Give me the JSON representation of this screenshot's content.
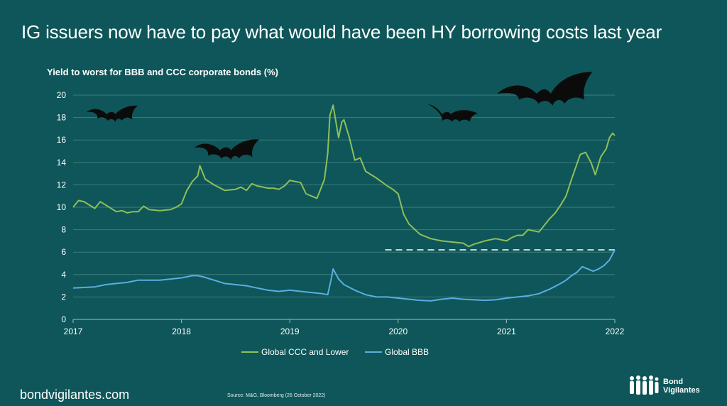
{
  "header": {
    "title": "IG issuers now have to pay what would have been HY borrowing costs last year",
    "subtitle": "Yield to worst for BBB and CCC corporate bonds (%)"
  },
  "footer": {
    "site": "bondvigilantes.com",
    "source": "Source: M&G, Bloomberg (26 October 2022)",
    "brand_line1": "Bond",
    "brand_line2": "Vigilantes"
  },
  "colors": {
    "background": "#0e5659",
    "ccc": "#8fbf5a",
    "bbb": "#5aaee0",
    "grid": "#3f7c7e",
    "dashed": "#ffffff"
  },
  "icons": [
    "bat-icon",
    "bondvigilantes-logo-icon"
  ],
  "chart_data": {
    "type": "line",
    "title": "Yield to worst for BBB and CCC corporate bonds (%)",
    "xlabel": "",
    "ylabel": "",
    "xlim": [
      2017.0,
      2022.0
    ],
    "ylim": [
      0,
      20
    ],
    "yticks": [
      0,
      2,
      4,
      6,
      8,
      10,
      12,
      14,
      16,
      18,
      20
    ],
    "xticks": [
      "2017",
      "2018",
      "2019",
      "2020",
      "2021",
      "2022"
    ],
    "grid": true,
    "legend_position": "bottom-center",
    "reference_line": {
      "y": 6.2,
      "x_start": 2019.88,
      "x_end": 2022.0,
      "style": "dashed"
    },
    "series": [
      {
        "name": "Global CCC and Lower",
        "color": "#8fbf5a",
        "x": [
          2017.0,
          2017.05,
          2017.1,
          2017.2,
          2017.25,
          2017.3,
          2017.4,
          2017.45,
          2017.5,
          2017.55,
          2017.6,
          2017.65,
          2017.7,
          2017.8,
          2017.9,
          2017.95,
          2018.0,
          2018.05,
          2018.1,
          2018.15,
          2018.17,
          2018.22,
          2018.3,
          2018.4,
          2018.5,
          2018.55,
          2018.6,
          2018.65,
          2018.7,
          2018.8,
          2018.85,
          2018.9,
          2018.95,
          2019.0,
          2019.05,
          2019.1,
          2019.15,
          2019.2,
          2019.25,
          2019.28,
          2019.32,
          2019.35,
          2019.37,
          2019.4,
          2019.45,
          2019.48,
          2019.5,
          2019.55,
          2019.6,
          2019.65,
          2019.7,
          2019.8,
          2019.9,
          2019.95,
          2020.0,
          2020.05,
          2020.1,
          2020.2,
          2020.3,
          2020.4,
          2020.5,
          2020.6,
          2020.65,
          2020.7,
          2020.8,
          2020.9,
          2021.0,
          2021.05,
          2021.1,
          2021.15,
          2021.2,
          2021.3,
          2021.4,
          2021.45,
          2021.5,
          2021.55,
          2021.6,
          2021.63,
          2021.68,
          2021.73,
          2021.78,
          2021.82,
          2021.87,
          2021.92,
          2021.95,
          2021.98,
          2022.0
        ],
        "values": [
          10.0,
          10.6,
          10.5,
          9.9,
          10.5,
          10.2,
          9.6,
          9.7,
          9.5,
          9.6,
          9.6,
          10.1,
          9.8,
          9.7,
          9.8,
          10.0,
          10.3,
          11.5,
          12.3,
          12.8,
          13.7,
          12.5,
          12.0,
          11.5,
          11.6,
          11.8,
          11.5,
          12.1,
          11.9,
          11.7,
          11.7,
          11.6,
          11.9,
          12.4,
          12.3,
          12.2,
          11.2,
          11.0,
          10.8,
          11.5,
          12.5,
          14.8,
          18.2,
          19.1,
          16.2,
          17.6,
          17.8,
          16.2,
          14.2,
          14.4,
          13.2,
          12.6,
          11.9,
          11.6,
          11.2,
          9.4,
          8.5,
          7.6,
          7.2,
          7.0,
          6.9,
          6.8,
          6.5,
          6.7,
          7.0,
          7.2,
          7.0,
          7.3,
          7.5,
          7.5,
          8.0,
          7.8,
          9.0,
          9.5,
          10.2,
          11.0,
          12.5,
          13.3,
          14.7,
          14.9,
          14.0,
          12.9,
          14.5,
          15.2,
          16.2,
          16.6,
          16.4
        ]
      },
      {
        "name": "Global BBB",
        "color": "#5aaee0",
        "x": [
          2017.0,
          2017.1,
          2017.2,
          2017.3,
          2017.4,
          2017.5,
          2017.6,
          2017.7,
          2017.8,
          2017.9,
          2018.0,
          2018.05,
          2018.1,
          2018.15,
          2018.2,
          2018.3,
          2018.4,
          2018.5,
          2018.6,
          2018.7,
          2018.8,
          2018.9,
          2019.0,
          2019.1,
          2019.2,
          2019.3,
          2019.35,
          2019.38,
          2019.4,
          2019.45,
          2019.5,
          2019.6,
          2019.7,
          2019.8,
          2019.9,
          2020.0,
          2020.1,
          2020.2,
          2020.3,
          2020.4,
          2020.5,
          2020.6,
          2020.7,
          2020.8,
          2020.9,
          2021.0,
          2021.1,
          2021.2,
          2021.3,
          2021.4,
          2021.5,
          2021.55,
          2021.6,
          2021.65,
          2021.7,
          2021.75,
          2021.8,
          2021.85,
          2021.9,
          2021.95,
          2022.0
        ],
        "values": [
          2.8,
          2.85,
          2.9,
          3.1,
          3.2,
          3.3,
          3.5,
          3.5,
          3.5,
          3.6,
          3.7,
          3.8,
          3.9,
          3.9,
          3.8,
          3.5,
          3.2,
          3.1,
          3.0,
          2.8,
          2.6,
          2.5,
          2.6,
          2.5,
          2.4,
          2.3,
          2.2,
          3.5,
          4.5,
          3.6,
          3.1,
          2.6,
          2.2,
          2.0,
          2.0,
          1.9,
          1.8,
          1.7,
          1.65,
          1.8,
          1.9,
          1.8,
          1.75,
          1.7,
          1.75,
          1.9,
          2.0,
          2.1,
          2.3,
          2.7,
          3.2,
          3.5,
          3.9,
          4.2,
          4.7,
          4.5,
          4.3,
          4.5,
          4.8,
          5.3,
          6.2
        ]
      }
    ]
  }
}
